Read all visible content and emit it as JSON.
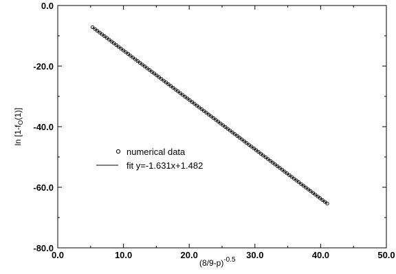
{
  "chart_data": {
    "type": "scatter",
    "title": "",
    "xlabel_main": "(8/9-p)",
    "xlabel_exponent": "-0.5",
    "ylabel_prefix": "ln [1-f",
    "ylabel_sub": "O",
    "ylabel_suffix": "(1)]",
    "xlim": [
      0.0,
      50.0
    ],
    "ylim": [
      -80.0,
      0.0
    ],
    "xticks": [
      0.0,
      10.0,
      20.0,
      30.0,
      40.0,
      50.0
    ],
    "yticks": [
      0.0,
      -20.0,
      -40.0,
      -60.0,
      -80.0
    ],
    "xtick_labels": [
      "0.0",
      "10.0",
      "20.0",
      "30.0",
      "40.0",
      "50.0"
    ],
    "ytick_labels": [
      "0.0",
      "-20.0",
      "-40.0",
      "-60.0",
      "-80.0"
    ],
    "grid": false,
    "legend_position": "center-left",
    "series": [
      {
        "name": "numerical data",
        "marker": "open-circle",
        "x_start": 5.3,
        "x_end": 41.0,
        "point_count": 100,
        "slope": -1.631,
        "intercept": 1.482
      },
      {
        "name": "fit y=-1.631x+1.482",
        "style": "line",
        "slope": -1.631,
        "intercept": 1.482,
        "x_range": [
          5.3,
          41.0
        ]
      }
    ]
  }
}
